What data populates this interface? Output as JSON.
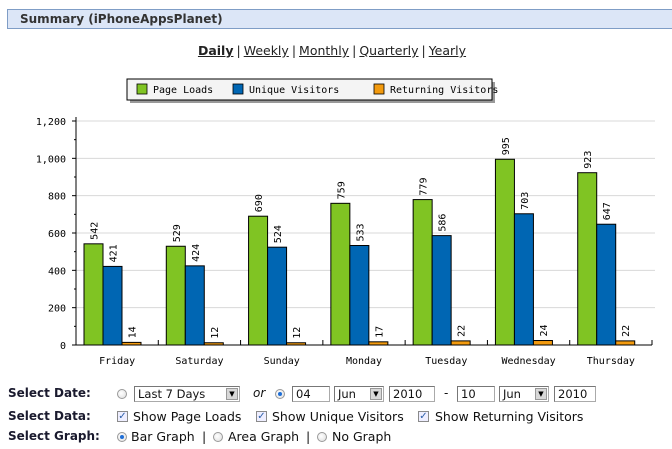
{
  "header": {
    "title": "Summary (iPhoneAppsPlanet)"
  },
  "periods": [
    {
      "label": "Daily",
      "active": true
    },
    {
      "label": "Weekly",
      "active": false
    },
    {
      "label": "Monthly",
      "active": false
    },
    {
      "label": "Quarterly",
      "active": false
    },
    {
      "label": "Yearly",
      "active": false
    }
  ],
  "period_separator": "|",
  "chart_data": {
    "type": "bar",
    "title": "",
    "xlabel": "",
    "ylabel": "",
    "ylim": [
      0,
      1200
    ],
    "yticks": [
      0,
      200,
      400,
      600,
      800,
      1000,
      1200
    ],
    "ytick_labels": [
      "0",
      "200",
      "400",
      "600",
      "800",
      "1,000",
      "1,200"
    ],
    "grid": true,
    "legend_position": "top-center",
    "categories": [
      "Friday",
      "Saturday",
      "Sunday",
      "Monday",
      "Tuesday",
      "Wednesday",
      "Thursday"
    ],
    "series": [
      {
        "name": "Page Loads",
        "color": "#80c423",
        "values": [
          542,
          529,
          690,
          759,
          779,
          995,
          923
        ]
      },
      {
        "name": "Unique Visitors",
        "color": "#0066b3",
        "values": [
          421,
          424,
          524,
          533,
          586,
          703,
          647
        ]
      },
      {
        "name": "Returning Visitors",
        "color": "#f29a0e",
        "values": [
          14,
          12,
          12,
          17,
          22,
          24,
          22
        ]
      }
    ]
  },
  "controls": {
    "select_date": {
      "label": "Select Date:",
      "preset_selected": false,
      "preset_value": "Last 7 Days",
      "or_label": "or",
      "range_selected": true,
      "from_day": "04",
      "from_month": "Jun",
      "from_year": "2010",
      "dash": "-",
      "to_day": "10",
      "to_month": "Jun",
      "to_year": "2010"
    },
    "select_data": {
      "label": "Select Data:",
      "options": [
        {
          "label": "Show Page Loads",
          "checked": true
        },
        {
          "label": "Show Unique Visitors",
          "checked": true
        },
        {
          "label": "Show Returning Visitors",
          "checked": true
        }
      ]
    },
    "select_graph": {
      "label": "Select Graph:",
      "options": [
        {
          "label": "Bar Graph",
          "selected": true
        },
        {
          "label": "Area Graph",
          "selected": false
        },
        {
          "label": "No Graph",
          "selected": false
        }
      ],
      "separator": "|"
    }
  }
}
